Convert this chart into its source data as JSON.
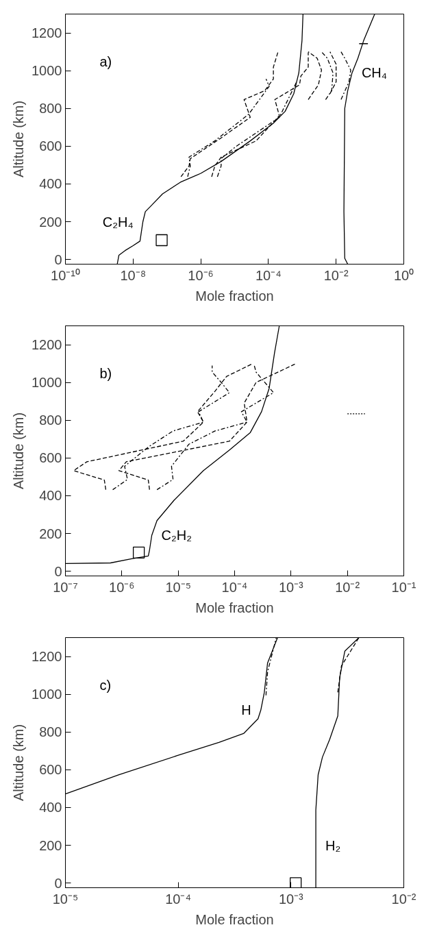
{
  "chart_data": [
    {
      "type": "line",
      "xlabel": "Mole fraction",
      "ylabel": "Altitude (km)",
      "log": "x",
      "grid": false,
      "xlim": [
        1e-10,
        1
      ],
      "ylim": [
        -25,
        1300
      ],
      "xticks": [
        {
          "value": 1e-10,
          "label": "10⁻¹⁰"
        },
        {
          "value": 1e-08,
          "label": "10⁻⁸"
        },
        {
          "value": 1e-06,
          "label": "10⁻⁶"
        },
        {
          "value": 0.0001,
          "label": "10⁻⁴"
        },
        {
          "value": 0.01,
          "label": "10⁻²"
        },
        {
          "value": 1,
          "label": "10⁰"
        }
      ],
      "yticks": [
        0,
        200,
        400,
        600,
        800,
        1000,
        1200
      ],
      "annotations": [
        "a)",
        {
          "text": "C₂H₄",
          "x": 1.95e-08,
          "y": 200
        },
        {
          "text": "CH₄",
          "x": 0.0295,
          "y": 988
        }
      ],
      "series": [
        {
          "color": "#000000",
          "line_style": "solid",
          "x": [
            3.4e-09,
            3.8e-09,
            5.8e-09,
            1e-08,
            1.6e-08,
            1.8e-08,
            1.95e-08,
            2.3e-08,
            3.4e-08,
            7.4e-08,
            2.5e-07,
            1e-06,
            4e-06,
            2.9e-05,
            0.00014,
            0.00031,
            0.00056,
            0.00079,
            0.00098,
            0.00105
          ],
          "values": [
            -25,
            22,
            47,
            73,
            97,
            159,
            200,
            253,
            284,
            347,
            409,
            456,
            519,
            628,
            722,
            784,
            878,
            988,
            1159,
            1300
          ]
        },
        {
          "color": "#000000",
          "line_style": "solid",
          "x": [
            0.022,
            0.018,
            0.017,
            0.018,
            0.022,
            0.0295,
            0.044,
            0.065,
            0.138
          ],
          "values": [
            -25,
            6,
            253,
            800,
            894,
            988,
            1066,
            1159,
            1300
          ]
        },
        {
          "color": "#000000",
          "line_style": "solid",
          "x": [
            0.048,
            0.087
          ],
          "values": [
            1143,
            1143
          ]
        },
        {
          "color": "#000000",
          "line_style": "dashed",
          "x": [
            2.6e-07,
            4.5e-07,
            4.9e-07,
            4e-06,
            2.9e-05,
            1.9e-05,
            7.8e-05,
            0.00014,
            0.00014,
            0.00019
          ],
          "values": [
            438,
            495,
            534,
            644,
            753,
            847,
            894,
            956,
            1019,
            1097
          ]
        },
        {
          "color": "#000000",
          "line_style": "dashdot",
          "x": [
            4.1e-07,
            4.9e-07,
            4.5e-07,
            2.6e-06,
            2.6e-05,
            0.000105,
            8.5e-05
          ],
          "values": [
            438,
            495,
            542,
            628,
            769,
            917,
            956
          ]
        },
        {
          "color": "#000000",
          "line_style": "dashed",
          "x": [
            2.1e-06,
            2.6e-06,
            4e-06,
            4.3e-05,
            0.00021,
            0.000155,
            0.00083,
            0.00091,
            0.0015,
            0.0015
          ],
          "values": [
            438,
            495,
            542,
            628,
            761,
            847,
            925,
            972,
            1019,
            1097
          ]
        },
        {
          "color": "#000000",
          "line_style": "dashdot",
          "x": [
            3.1e-06,
            4e-06,
            4e-06,
            1.07e-05,
            0.00021,
            0.00068
          ],
          "values": [
            438,
            495,
            534,
            597,
            753,
            941
          ]
        },
        {
          "color": "#000000",
          "line_style": "dashed",
          "x": [
            0.0015,
            0.003,
            0.0037,
            0.00275,
            0.0015
          ],
          "values": [
            847,
            925,
            1003,
            1066,
            1100
          ]
        },
        {
          "color": "#000000",
          "line_style": "dashdot",
          "x": [
            0.0049,
            0.0074,
            0.0081,
            0.0055,
            0.0037
          ],
          "values": [
            847,
            894,
            988,
            1066,
            1100
          ]
        },
        {
          "color": "#000000",
          "line_style": "dashed",
          "x": [
            0.0066,
            0.01,
            0.01,
            0.0066
          ],
          "values": [
            878,
            941,
            1034,
            1100
          ]
        },
        {
          "color": "#000000",
          "line_style": "dashdot",
          "x": [
            0.014,
            0.024,
            0.027,
            0.018,
            0.014
          ],
          "values": [
            847,
            941,
            1003,
            1066,
            1100
          ]
        },
        {
          "type": "scatter",
          "marker": "square",
          "color": "#000000",
          "x": [
            7e-08
          ],
          "values": [
            102
          ]
        }
      ]
    },
    {
      "type": "line",
      "xlabel": "Mole fraction",
      "ylabel": "Altitude (km)",
      "log": "x",
      "grid": false,
      "xlim": [
        1e-07,
        0.1
      ],
      "ylim": [
        -25,
        1300
      ],
      "xticks": [
        {
          "value": 1e-07,
          "label": "10⁻⁷"
        },
        {
          "value": 1e-06,
          "label": "10⁻⁶"
        },
        {
          "value": 1e-05,
          "label": "10⁻⁵"
        },
        {
          "value": 0.0001,
          "label": "10⁻⁴"
        },
        {
          "value": 0.001,
          "label": "10⁻³"
        },
        {
          "value": 0.01,
          "label": "10⁻²"
        },
        {
          "value": 0.1,
          "label": "10⁻¹"
        }
      ],
      "yticks": [
        0,
        200,
        400,
        600,
        800,
        1000,
        1200
      ],
      "annotations": [
        "b)",
        {
          "text": "C₂H₂",
          "x": 3.4e-06,
          "y": 190
        }
      ],
      "series": [
        {
          "color": "#000000",
          "line_style": "solid",
          "x": [
            1e-07,
            6.3e-07,
            1.45e-06,
            2.95e-06,
            3.1e-06,
            3.4e-06,
            4.2e-06,
            8.5e-06,
            2.8e-05,
            8.1e-05,
            0.00019,
            0.0003,
            0.00041,
            0.00051,
            0.00062
          ],
          "values": [
            41,
            44,
            65,
            81,
            112,
            190,
            268,
            377,
            533,
            642,
            735,
            845,
            969,
            1156,
            1300
          ]
        },
        {
          "color": "#000000",
          "line_style": "dashed",
          "x": [
            5.2e-07,
            4.9e-07,
            1.4e-07,
            2.4e-07,
            1.23e-05,
            2.8e-05,
            2.2e-05,
            4.5e-05,
            7.2e-05,
            0.0002
          ],
          "values": [
            432,
            483,
            533,
            580,
            689,
            790,
            845,
            954,
            1032,
            1097
          ]
        },
        {
          "color": "#000000",
          "line_style": "dashdot",
          "x": [
            6.9e-07,
            1.26e-06,
            1.12e-06,
            2.95e-06,
            8.1e-06,
            2.8e-05,
            2.3e-05,
            8.1e-05,
            5.8e-05,
            4e-05,
            4e-05
          ],
          "values": [
            432,
            486,
            556,
            658,
            743,
            790,
            845,
            946,
            1000,
            1055,
            1089
          ]
        },
        {
          "color": "#000000",
          "line_style": "dashed",
          "x": [
            3.1e-06,
            2.95e-06,
            8.9e-07,
            1.2e-06,
            8.1e-05,
            0.000166,
            0.000148,
            0.00024,
            0.00117
          ],
          "values": [
            432,
            483,
            533,
            580,
            689,
            790,
            891,
            1000,
            1097
          ]
        },
        {
          "color": "#000000",
          "line_style": "dashdot",
          "x": [
            4.2e-06,
            8.1e-06,
            7.6e-06,
            1.55e-05,
            4.5e-05,
            0.000166,
            0.000132,
            0.00049,
            0.00024,
            0.00022
          ],
          "values": [
            432,
            486,
            556,
            673,
            743,
            790,
            845,
            946,
            1055,
            1097
          ]
        },
        {
          "color": "#000000",
          "line_style": "dotted",
          "x": [
            0.01,
            0.0205
          ],
          "values": [
            834,
            834
          ]
        },
        {
          "type": "scatter",
          "marker": "square",
          "color": "#000000",
          "x": [
            2e-06
          ],
          "values": [
            99
          ]
        }
      ]
    },
    {
      "type": "line",
      "xlabel": "Mole fraction",
      "ylabel": "Altitude (km)",
      "log": "x",
      "grid": false,
      "xlim": [
        1e-05,
        0.01
      ],
      "ylim": [
        -25,
        1300
      ],
      "xticks": [
        {
          "value": 1e-05,
          "label": "10⁻⁵"
        },
        {
          "value": 0.0001,
          "label": "10⁻⁴"
        },
        {
          "value": 0.001,
          "label": "10⁻³"
        },
        {
          "value": 0.01,
          "label": "10⁻²"
        }
      ],
      "yticks": [
        0,
        200,
        400,
        600,
        800,
        1000,
        1200
      ],
      "annotations": [
        "c)",
        {
          "text": "H",
          "x": 0.00054,
          "y": 916
        },
        {
          "text": "H₂",
          "x": 0.00166,
          "y": 200
        }
      ],
      "series": [
        {
          "color": "#000000",
          "line_style": "solid",
          "x": [
            1e-05,
            2.95e-05,
            9.8e-05,
            0.00023,
            0.00038,
            0.00051,
            0.00054,
            0.00058,
            0.00062,
            0.00076
          ],
          "values": [
            472,
            573,
            675,
            745,
            792,
            870,
            916,
            1010,
            1166,
            1300
          ]
        },
        {
          "color": "#000000",
          "line_style": "dashdot",
          "x": [
            0.0006,
            0.00062,
            0.00074
          ],
          "values": [
            994,
            1119,
            1300
          ]
        },
        {
          "color": "#000000",
          "line_style": "solid",
          "x": [
            0.00166,
            0.00166,
            0.00166,
            0.00174,
            0.0019,
            0.0022,
            0.0026,
            0.0027,
            0.003,
            0.004
          ],
          "values": [
            -25,
            200,
            386,
            573,
            667,
            760,
            885,
            1088,
            1228,
            1300
          ]
        },
        {
          "color": "#000000",
          "line_style": "dashed",
          "x": [
            0.0026,
            0.0028,
            0.004
          ],
          "values": [
            1010,
            1150,
            1300
          ]
        },
        {
          "type": "scatter",
          "marker": "square",
          "color": "#000000",
          "x": [
            0.0011
          ],
          "values": [
            -1
          ]
        }
      ]
    }
  ]
}
